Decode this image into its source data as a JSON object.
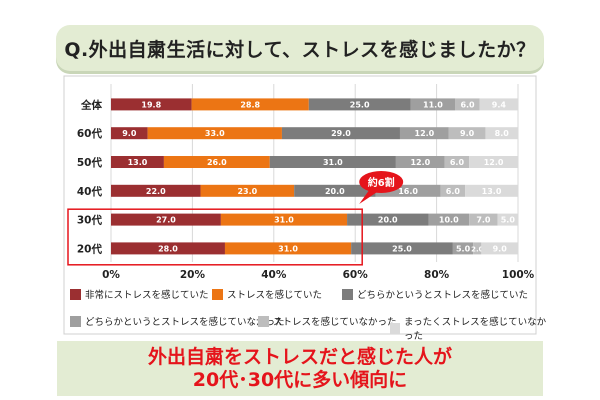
{
  "header": {
    "title": "Q.外出自粛生活に対して、ストレスを感じましたか？"
  },
  "chart_data": {
    "type": "bar",
    "orientation": "horizontal",
    "stacked": true,
    "percent": true,
    "categories": [
      "全体",
      "60代",
      "50代",
      "40代",
      "30代",
      "20代"
    ],
    "series": [
      {
        "name": "非常にストレスを感じていた",
        "color": "#9b2f31",
        "values": [
          19.8,
          9.0,
          13.0,
          22.0,
          27.0,
          28.0
        ]
      },
      {
        "name": "ストレスを感じていた",
        "color": "#ec7514",
        "values": [
          28.8,
          33.0,
          26.0,
          23.0,
          31.0,
          31.0
        ]
      },
      {
        "name": "どちらかというとストレスを感じていた",
        "color": "#7c7c7c",
        "values": [
          25.0,
          29.0,
          31.0,
          20.0,
          20.0,
          25.0
        ]
      },
      {
        "name": "どちらかというとストレスを感じていなかった",
        "color": "#9f9f9f",
        "values": [
          11.0,
          12.0,
          12.0,
          16.0,
          10.0,
          5.0
        ]
      },
      {
        "name": "ストレスを感じていなかった",
        "color": "#bdbdbd",
        "values": [
          6.0,
          9.0,
          6.0,
          6.0,
          7.0,
          2.0
        ]
      },
      {
        "name": "まったくストレスを感じていなかった",
        "color": "#dadada",
        "values": [
          9.4,
          8.0,
          12.0,
          13.0,
          5.0,
          9.0
        ]
      }
    ],
    "xlim": [
      0,
      100
    ],
    "xticks": [
      "0%",
      "20%",
      "40%",
      "60%",
      "80%",
      "100%"
    ],
    "grid": true,
    "legend_position": "bottom",
    "annotation": {
      "text": "約6割",
      "value": 60,
      "highlight_categories": [
        "30代",
        "20代"
      ]
    }
  },
  "banner": {
    "line1": "外出自粛をストレスだと感じた人が",
    "line2": "20代･30代に多い傾向に"
  }
}
